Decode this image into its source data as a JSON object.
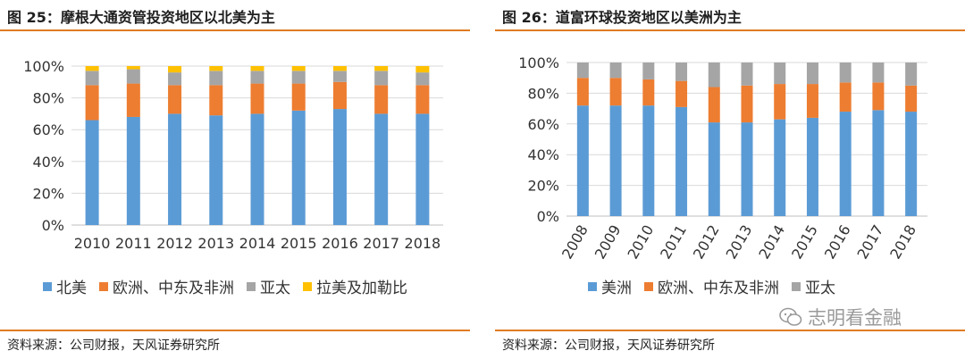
{
  "left": {
    "title": "图 25：摩根大通资管投资地区以北美为主",
    "source": "资料来源：公司财报，天风证券研究所"
  },
  "right": {
    "title": "图 26：道富环球投资地区以美洲为主",
    "source": "资料来源：公司财报，天风证券研究所"
  },
  "watermark": {
    "text": "志明看金融",
    "icon": "wechat-icon"
  },
  "chart_data": [
    {
      "type": "bar",
      "stacked": true,
      "title": "",
      "xlabel": "",
      "ylabel": "",
      "ylim": [
        0,
        100
      ],
      "yticks": [
        "0%",
        "20%",
        "40%",
        "60%",
        "80%",
        "100%"
      ],
      "grid": true,
      "legend_position": "bottom",
      "categories": [
        "2010",
        "2011",
        "2012",
        "2013",
        "2014",
        "2015",
        "2016",
        "2017",
        "2018"
      ],
      "series": [
        {
          "name": "北美",
          "color": "#5b9bd5",
          "values": [
            66,
            68,
            70,
            69,
            70,
            72,
            73,
            70,
            70
          ]
        },
        {
          "name": "欧洲、中东及非洲",
          "color": "#ed7d31",
          "values": [
            22,
            21,
            18,
            19,
            19,
            17,
            17,
            18,
            18
          ]
        },
        {
          "name": "亚太",
          "color": "#a5a5a5",
          "values": [
            9,
            9,
            8,
            9,
            8,
            8,
            7,
            9,
            8
          ]
        },
        {
          "name": "拉美及加勒比",
          "color": "#ffc000",
          "values": [
            3,
            2,
            4,
            3,
            3,
            3,
            3,
            3,
            4
          ]
        }
      ]
    },
    {
      "type": "bar",
      "stacked": true,
      "title": "",
      "xlabel": "",
      "ylabel": "",
      "ylim": [
        0,
        100
      ],
      "yticks": [
        "0%",
        "20%",
        "40%",
        "60%",
        "80%",
        "100%"
      ],
      "grid": true,
      "legend_position": "bottom",
      "categories": [
        "2008",
        "2009",
        "2010",
        "2011",
        "2012",
        "2013",
        "2014",
        "2015",
        "2016",
        "2017",
        "2018"
      ],
      "series": [
        {
          "name": "美洲",
          "color": "#5b9bd5",
          "values": [
            72,
            72,
            72,
            71,
            61,
            61,
            63,
            64,
            68,
            69,
            68
          ]
        },
        {
          "name": "欧洲、中东及非洲",
          "color": "#ed7d31",
          "values": [
            18,
            18,
            17,
            17,
            23,
            24,
            23,
            22,
            19,
            18,
            17
          ]
        },
        {
          "name": "亚太",
          "color": "#a5a5a5",
          "values": [
            10,
            10,
            11,
            12,
            16,
            15,
            14,
            14,
            13,
            13,
            15
          ]
        }
      ]
    }
  ]
}
